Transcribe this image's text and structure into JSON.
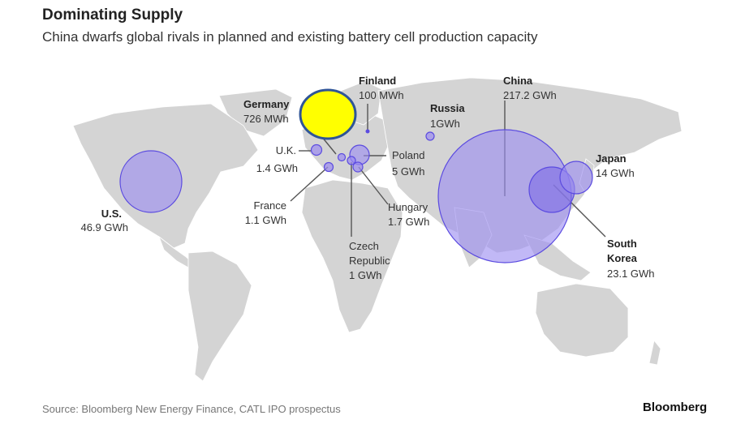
{
  "title": "Dominating Supply",
  "subtitle": "China dwarfs global rivals in planned and existing battery cell production capacity",
  "source": "Source: Bloomberg New Energy Finance, CATL IPO prospectus",
  "brand": "Bloomberg",
  "colors": {
    "land": "#d4d4d4",
    "bubble_fill": "#9b8cf0",
    "bubble_stroke": "#5b4be0",
    "highlight": "#ffff00",
    "highlight_stroke": "#2f5597"
  },
  "countries": [
    {
      "id": "us",
      "name": "U.S.",
      "value_label": "46.9 GWh",
      "gwh": 46.9
    },
    {
      "id": "uk",
      "name": "U.K.",
      "value_label": "1.4 GWh",
      "gwh": 1.4
    },
    {
      "id": "france",
      "name": "France",
      "value_label": "1.1 GWh",
      "gwh": 1.1
    },
    {
      "id": "germany",
      "name": "Germany",
      "value_label": "726 MWh",
      "gwh": 0.726
    },
    {
      "id": "finland",
      "name": "Finland",
      "value_label": "100 MWh",
      "gwh": 0.1
    },
    {
      "id": "russia",
      "name": "Russia",
      "value_label": "1GWh",
      "gwh": 1
    },
    {
      "id": "poland",
      "name": "Poland",
      "value_label": "5 GWh",
      "gwh": 5
    },
    {
      "id": "hungary",
      "name": "Hungary",
      "value_label": "1.7 GWh",
      "gwh": 1.7
    },
    {
      "id": "czech",
      "name_lines": [
        "Czech",
        "Republic"
      ],
      "value_label": "1 GWh",
      "gwh": 1
    },
    {
      "id": "china",
      "name": "China",
      "value_label": "217.2 GWh",
      "gwh": 217.2
    },
    {
      "id": "japan",
      "name": "Japan",
      "value_label": "14 GWh",
      "gwh": 14
    },
    {
      "id": "korea",
      "name_lines": [
        "South",
        "Korea"
      ],
      "value_label": "23.1 GWh",
      "gwh": 23.1
    }
  ]
}
